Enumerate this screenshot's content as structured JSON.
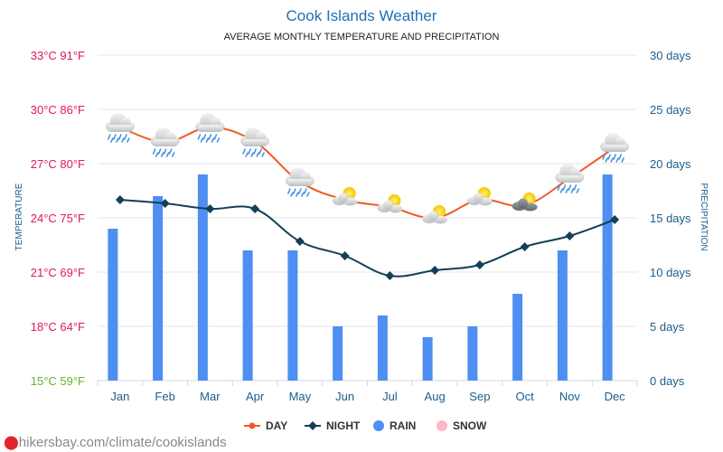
{
  "title": "Cook Islands Weather",
  "subtitle": "AVERAGE MONTHLY TEMPERATURE AND PRECIPITATION",
  "footer": "hikersbay.com/climate/cookislands",
  "colors": {
    "day": "#f05a24",
    "night": "#133f57",
    "rain": "#4e8ff1",
    "snow": "#ffb6c8",
    "title": "#1f6fb5",
    "left_axis": "#e0175f",
    "right_axis": "#1c5d8c"
  },
  "chart_data": {
    "type": "line+bar",
    "title": "Cook Islands Weather",
    "subtitle": "AVERAGE MONTHLY TEMPERATURE AND PRECIPITATION",
    "categories": [
      "Jan",
      "Feb",
      "Mar",
      "Apr",
      "May",
      "Jun",
      "Jul",
      "Aug",
      "Sep",
      "Oct",
      "Nov",
      "Dec"
    ],
    "ylabel_left": "TEMPERATURE",
    "ylabel_right": "PRECIPITATION",
    "ylim_left": [
      15,
      33
    ],
    "ylim_right": [
      0,
      30
    ],
    "left_ticks": [
      {
        "c": 33,
        "label": "33°C 91°F"
      },
      {
        "c": 30,
        "label": "30°C 86°F"
      },
      {
        "c": 27,
        "label": "27°C 80°F"
      },
      {
        "c": 24,
        "label": "24°C 75°F"
      },
      {
        "c": 21,
        "label": "21°C 69°F"
      },
      {
        "c": 18,
        "label": "18°C 64°F"
      },
      {
        "c": 15,
        "label": "15°C 59°F"
      }
    ],
    "right_ticks": [
      {
        "v": 30,
        "label": "30 days"
      },
      {
        "v": 25,
        "label": "25 days"
      },
      {
        "v": 20,
        "label": "20 days"
      },
      {
        "v": 15,
        "label": "15 days"
      },
      {
        "v": 10,
        "label": "10 days"
      },
      {
        "v": 5,
        "label": "5 days"
      },
      {
        "v": 0,
        "label": "0 days"
      }
    ],
    "series": [
      {
        "name": "DAY",
        "type": "line",
        "axis": "left",
        "values": [
          29.0,
          28.2,
          29.0,
          28.2,
          26.0,
          25.0,
          24.6,
          24.0,
          25.0,
          24.7,
          26.2,
          27.9
        ]
      },
      {
        "name": "NIGHT",
        "type": "line",
        "axis": "left",
        "values": [
          25.0,
          24.8,
          24.5,
          24.5,
          22.7,
          21.9,
          20.8,
          21.1,
          21.4,
          22.4,
          23.0,
          23.9
        ]
      },
      {
        "name": "RAIN",
        "type": "bar",
        "axis": "right",
        "values": [
          14,
          17,
          19,
          12,
          12,
          5,
          6,
          4,
          5,
          8,
          12,
          19
        ]
      }
    ],
    "weather_icons": [
      "rain-cloud",
      "rain-cloud",
      "rain-cloud",
      "rain-cloud",
      "rain-cloud",
      "sun-cloud",
      "sun-cloud",
      "sun-cloud",
      "sun-cloud",
      "sun-dark-cloud",
      "rain-cloud",
      "rain-cloud"
    ],
    "legend": [
      {
        "name": "DAY",
        "symbol": "line-dot"
      },
      {
        "name": "NIGHT",
        "symbol": "line-diamond"
      },
      {
        "name": "RAIN",
        "symbol": "circle"
      },
      {
        "name": "SNOW",
        "symbol": "circle"
      }
    ],
    "legend_position": "bottom-center",
    "grid": true
  }
}
